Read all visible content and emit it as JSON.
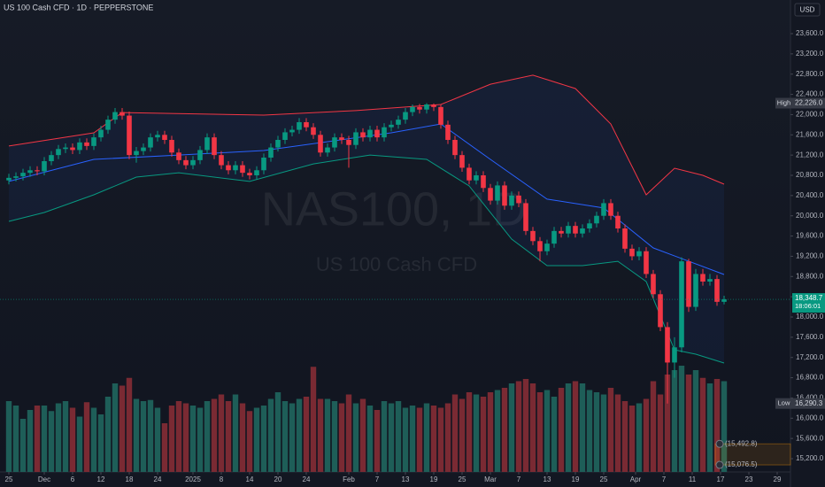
{
  "chart_data": {
    "type": "candlestick",
    "title": "US 100 Cash CFD · 1D · PEPPERSTONE",
    "watermark": "NAS100, 1D",
    "watermark_subtitle": "US 100 Cash CFD",
    "currency": "USD",
    "up_color": "#089981",
    "down_color": "#f23645",
    "volume_up_color": "#1e5e58",
    "volume_down_color": "#7a2a33",
    "ylim": [
      14937.5,
      24265
    ],
    "xlim": [
      -1.25,
      110.375
    ],
    "vlim": [
      0,
      100
    ],
    "yticks": [
      {
        "value": 15200,
        "label": "15,200.0"
      },
      {
        "value": 15600,
        "label": "15,600.0"
      },
      {
        "value": 16000,
        "label": "16,000.0"
      },
      {
        "value": 16400,
        "label": "16,400.0"
      },
      {
        "value": 16800,
        "label": "16,800.0"
      },
      {
        "value": 17200,
        "label": "17,200.0"
      },
      {
        "value": 17600,
        "label": "17,600.0"
      },
      {
        "value": 18000,
        "label": "18,000.0"
      },
      {
        "value": 18400,
        "label": "18,400.0"
      },
      {
        "value": 18800,
        "label": "18,800.0"
      },
      {
        "value": 19200,
        "label": "19,200.0"
      },
      {
        "value": 19600,
        "label": "19,600.0"
      },
      {
        "value": 20000,
        "label": "20,000.0"
      },
      {
        "value": 20400,
        "label": "20,400.0"
      },
      {
        "value": 20800,
        "label": "20,800.0"
      },
      {
        "value": 21200,
        "label": "21,200.0"
      },
      {
        "value": 21600,
        "label": "21,600.0"
      },
      {
        "value": 22000,
        "label": "22,000.0"
      },
      {
        "value": 22400,
        "label": "22,400.0"
      },
      {
        "value": 22800,
        "label": "22,800.0"
      },
      {
        "value": 23200,
        "label": "23,200.0"
      },
      {
        "value": 23600,
        "label": "23,600.0"
      }
    ],
    "xticks": [
      {
        "value": 0,
        "label": "25"
      },
      {
        "value": 5,
        "label": "Dec"
      },
      {
        "value": 9,
        "label": "6"
      },
      {
        "value": 13,
        "label": "12"
      },
      {
        "value": 17,
        "label": "18"
      },
      {
        "value": 21,
        "label": "24"
      },
      {
        "value": 26,
        "label": "2025"
      },
      {
        "value": 30,
        "label": "8"
      },
      {
        "value": 34,
        "label": "14"
      },
      {
        "value": 38,
        "label": "20"
      },
      {
        "value": 42,
        "label": "24"
      },
      {
        "value": 48,
        "label": "Feb"
      },
      {
        "value": 52,
        "label": "7"
      },
      {
        "value": 56,
        "label": "13"
      },
      {
        "value": 60,
        "label": "19"
      },
      {
        "value": 64,
        "label": "25"
      },
      {
        "value": 68,
        "label": "Mar"
      },
      {
        "value": 72,
        "label": "7"
      },
      {
        "value": 76,
        "label": "13"
      },
      {
        "value": 80,
        "label": "19"
      },
      {
        "value": 84,
        "label": "25"
      },
      {
        "value": 88.5,
        "label": "Apr"
      },
      {
        "value": 92.5,
        "label": "7"
      },
      {
        "value": 96.5,
        "label": "11"
      },
      {
        "value": 100.5,
        "label": "17"
      },
      {
        "value": 104.5,
        "label": "23"
      },
      {
        "value": 108.5,
        "label": "29"
      }
    ],
    "ohlc": [
      [
        20700,
        20830,
        20620,
        20750
      ],
      [
        20750,
        20860,
        20680,
        20780
      ],
      [
        20780,
        20930,
        20700,
        20850
      ],
      [
        20850,
        20980,
        20770,
        20900
      ],
      [
        20900,
        20980,
        20800,
        20880
      ],
      [
        20880,
        21160,
        20800,
        21080
      ],
      [
        21080,
        21280,
        21000,
        21200
      ],
      [
        21200,
        21400,
        21120,
        21320
      ],
      [
        21320,
        21430,
        21240,
        21350
      ],
      [
        21350,
        21430,
        21220,
        21300
      ],
      [
        21300,
        21530,
        21220,
        21450
      ],
      [
        21450,
        21530,
        21300,
        21380
      ],
      [
        21380,
        21630,
        21300,
        21550
      ],
      [
        21550,
        21780,
        21470,
        21700
      ],
      [
        21700,
        21980,
        21620,
        21900
      ],
      [
        21900,
        22130,
        21820,
        22050
      ],
      [
        22050,
        22130,
        21900,
        21980
      ],
      [
        21980,
        22060,
        21120,
        21200
      ],
      [
        21200,
        21360,
        21050,
        21280
      ],
      [
        21280,
        21430,
        21200,
        21350
      ],
      [
        21350,
        21630,
        21270,
        21550
      ],
      [
        21550,
        21680,
        21470,
        21600
      ],
      [
        21600,
        21680,
        21420,
        21500
      ],
      [
        21500,
        21580,
        21170,
        21250
      ],
      [
        21250,
        21330,
        21020,
        21100
      ],
      [
        21100,
        21180,
        20920,
        21000
      ],
      [
        21000,
        21180,
        20920,
        21100
      ],
      [
        21100,
        21380,
        21020,
        21300
      ],
      [
        21300,
        21630,
        21220,
        21550
      ],
      [
        21550,
        21630,
        21120,
        21200
      ],
      [
        21200,
        21280,
        20920,
        21000
      ],
      [
        21000,
        21080,
        20820,
        20900
      ],
      [
        20900,
        21080,
        20820,
        21000
      ],
      [
        21000,
        21080,
        20770,
        20850
      ],
      [
        20850,
        20930,
        20720,
        20800
      ],
      [
        20800,
        20980,
        20720,
        20900
      ],
      [
        20900,
        21230,
        20820,
        21150
      ],
      [
        21150,
        21430,
        21070,
        21350
      ],
      [
        21350,
        21580,
        21270,
        21500
      ],
      [
        21500,
        21730,
        21420,
        21650
      ],
      [
        21650,
        21780,
        21570,
        21700
      ],
      [
        21700,
        21930,
        21620,
        21850
      ],
      [
        21850,
        21930,
        21670,
        21750
      ],
      [
        21750,
        21830,
        21520,
        21600
      ],
      [
        21600,
        21680,
        21170,
        21250
      ],
      [
        21250,
        21430,
        21170,
        21350
      ],
      [
        21350,
        21630,
        21270,
        21550
      ],
      [
        21550,
        21630,
        21420,
        21500
      ],
      [
        21500,
        21580,
        20950,
        21400
      ],
      [
        21400,
        21730,
        21320,
        21650
      ],
      [
        21650,
        21730,
        21470,
        21550
      ],
      [
        21550,
        21780,
        21470,
        21700
      ],
      [
        21700,
        21780,
        21470,
        21550
      ],
      [
        21550,
        21830,
        21470,
        21750
      ],
      [
        21750,
        21880,
        21670,
        21800
      ],
      [
        21800,
        21980,
        21720,
        21900
      ],
      [
        21900,
        22130,
        21820,
        22050
      ],
      [
        22050,
        22200,
        21970,
        22150
      ],
      [
        22150,
        22210,
        22020,
        22100
      ],
      [
        22100,
        22226,
        22020,
        22200
      ],
      [
        22200,
        22220,
        22070,
        22150
      ],
      [
        22150,
        22200,
        21720,
        21800
      ],
      [
        21800,
        21880,
        21420,
        21500
      ],
      [
        21500,
        21580,
        21120,
        21200
      ],
      [
        21200,
        21280,
        20870,
        20950
      ],
      [
        20950,
        21030,
        20620,
        20700
      ],
      [
        20700,
        20880,
        20620,
        20800
      ],
      [
        20800,
        20880,
        20470,
        20550
      ],
      [
        20550,
        20630,
        20220,
        20300
      ],
      [
        20300,
        20680,
        20220,
        20600
      ],
      [
        20600,
        20680,
        20120,
        20200
      ],
      [
        20200,
        20480,
        20120,
        20400
      ],
      [
        20400,
        20480,
        20170,
        20250
      ],
      [
        20250,
        20330,
        19620,
        19700
      ],
      [
        19700,
        19780,
        19420,
        19500
      ],
      [
        19500,
        19580,
        19100,
        19300
      ],
      [
        19300,
        19530,
        19220,
        19450
      ],
      [
        19450,
        19780,
        19370,
        19700
      ],
      [
        19700,
        19780,
        19570,
        19650
      ],
      [
        19650,
        19880,
        19570,
        19800
      ],
      [
        19800,
        19880,
        19570,
        19650
      ],
      [
        19650,
        19830,
        19570,
        19750
      ],
      [
        19750,
        19930,
        19670,
        19850
      ],
      [
        19850,
        20080,
        19770,
        20000
      ],
      [
        20000,
        20330,
        19920,
        20250
      ],
      [
        20250,
        20330,
        19920,
        20000
      ],
      [
        20000,
        20080,
        19670,
        19750
      ],
      [
        19750,
        19830,
        19270,
        19350
      ],
      [
        19350,
        19430,
        19120,
        19200
      ],
      [
        19200,
        19380,
        19120,
        19300
      ],
      [
        19300,
        19380,
        18770,
        18850
      ],
      [
        18850,
        18930,
        18370,
        18450
      ],
      [
        18450,
        18530,
        17720,
        17800
      ],
      [
        17800,
        17900,
        16290.3,
        17100
      ],
      [
        17100,
        17600,
        16800,
        17400
      ],
      [
        17400,
        19180,
        17300,
        19100
      ],
      [
        19100,
        19150,
        18100,
        18200
      ],
      [
        18200,
        18950,
        18120,
        18850
      ],
      [
        18850,
        18950,
        18620,
        18700
      ],
      [
        18700,
        18850,
        18620,
        18750
      ],
      [
        18750,
        18830,
        18220,
        18300
      ],
      [
        18300,
        18420,
        18250,
        18348.7
      ]
    ],
    "volume": [
      64,
      60,
      48,
      56,
      60,
      60,
      55,
      62,
      64,
      58,
      50,
      63,
      58,
      52,
      68,
      80,
      78,
      85,
      66,
      64,
      65,
      58,
      44,
      60,
      64,
      62,
      60,
      58,
      64,
      66,
      70,
      64,
      70,
      62,
      55,
      58,
      60,
      66,
      72,
      64,
      62,
      66,
      68,
      95,
      66,
      66,
      64,
      62,
      70,
      62,
      66,
      60,
      56,
      64,
      62,
      64,
      58,
      60,
      58,
      62,
      60,
      58,
      62,
      70,
      66,
      72,
      70,
      68,
      72,
      74,
      76,
      80,
      82,
      84,
      80,
      72,
      74,
      68,
      76,
      80,
      82,
      80,
      74,
      72,
      70,
      76,
      70,
      64,
      60,
      62,
      66,
      82,
      70,
      88,
      92,
      96,
      88,
      92,
      85,
      80,
      84,
      82
    ],
    "series": [
      {
        "color": "#f23645",
        "x": [
          0,
          12,
          16,
          36,
          49,
          61,
          68,
          74,
          80,
          85,
          90,
          94,
          98,
          101
        ],
        "values": [
          21380,
          21640,
          22040,
          21990,
          22080,
          22200,
          22600,
          22780,
          22515,
          21815,
          20415,
          20940,
          20800,
          20625
        ]
      },
      {
        "color": "#2962ff",
        "x": [
          0,
          12,
          24,
          36,
          54,
          61,
          68,
          76,
          84,
          91,
          101
        ],
        "values": [
          20680,
          21115,
          21200,
          21290,
          21640,
          21815,
          21115,
          20330,
          20155,
          19365,
          18840
        ]
      },
      {
        "color": "#089981",
        "x": [
          0,
          5,
          12,
          18,
          24,
          34,
          43,
          51,
          59,
          65,
          71,
          76,
          81,
          86,
          90,
          94,
          97,
          101
        ],
        "values": [
          19890,
          20065,
          20415,
          20765,
          20850,
          20680,
          21025,
          21200,
          21115,
          20590,
          19540,
          19015,
          19015,
          19100,
          18700,
          17350,
          17265,
          17090
        ]
      }
    ],
    "markers": [
      {
        "name": "High",
        "value": 22226.0,
        "value_label": "22,226.0"
      },
      {
        "name": "Low",
        "value": 16290.3,
        "value_label": "16,290.3"
      }
    ],
    "last_price": {
      "value": 18348.7,
      "value_label": "18,348.7",
      "countdown": "18:06:01"
    },
    "alerts": [
      {
        "value": 15492.8,
        "value_label": "(15,492.8)"
      },
      {
        "value": 15076.5,
        "value_label": "(15,076.5)"
      }
    ]
  }
}
